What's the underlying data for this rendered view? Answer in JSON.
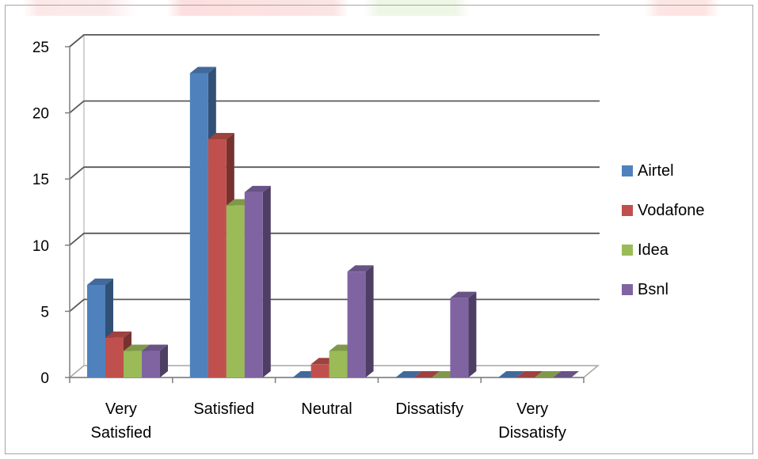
{
  "chart_data": {
    "type": "bar",
    "style": "3d-clustered-column",
    "categories": [
      "Very Satisfied",
      "Satisfied",
      "Neutral",
      "Dissatisfy",
      "Very Dissatisfy"
    ],
    "category_lines": [
      [
        "Very",
        "Satisfied"
      ],
      [
        "Satisfied"
      ],
      [
        "Neutral"
      ],
      [
        "Dissatisfy"
      ],
      [
        "Very",
        "Dissatisfy"
      ]
    ],
    "series": [
      {
        "name": "Airtel",
        "color": "#4f81bd",
        "values": [
          7,
          23,
          0,
          0,
          0
        ]
      },
      {
        "name": "Vodafone",
        "color": "#c0504d",
        "values": [
          3,
          18,
          1,
          0,
          0
        ]
      },
      {
        "name": "Idea",
        "color": "#9bbb59",
        "values": [
          2,
          13,
          2,
          0,
          0
        ]
      },
      {
        "name": "Bsnl",
        "color": "#8064a2",
        "values": [
          2,
          14,
          8,
          6,
          0
        ]
      }
    ],
    "yticks": [
      "0",
      "5",
      "10",
      "15",
      "20",
      "25"
    ],
    "ylim": [
      0,
      25
    ],
    "title": "",
    "xlabel": "",
    "ylabel": "",
    "grid": true,
    "legend_position": "right"
  }
}
